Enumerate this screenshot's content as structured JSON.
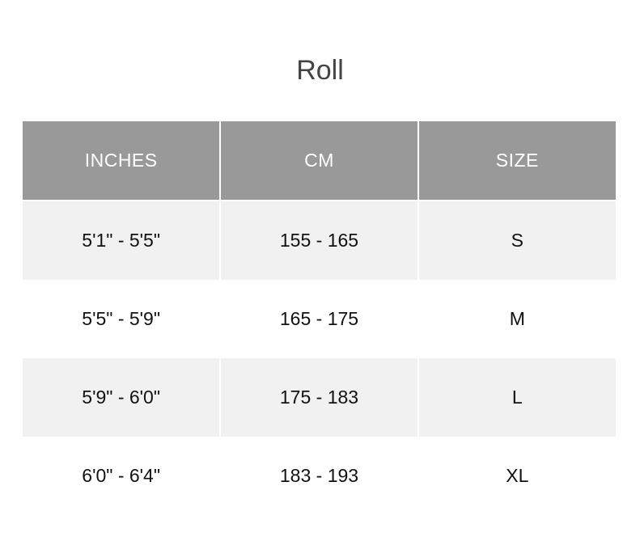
{
  "title": "Roll",
  "headers": [
    "INCHES",
    "CM",
    "SIZE"
  ],
  "rows": [
    [
      "5'1\" - 5'5\"",
      "155 - 165",
      "S"
    ],
    [
      "5'5\" - 5'9\"",
      "165 - 175",
      "M"
    ],
    [
      "5'9\" - 6'0\"",
      "175 - 183",
      "L"
    ],
    [
      "6'0\" - 6'4\"",
      "183 - 193",
      "XL"
    ]
  ],
  "colors": {
    "header_bg": "#999999",
    "stripe_bg": "#f1f1f1",
    "title": "#444444"
  }
}
